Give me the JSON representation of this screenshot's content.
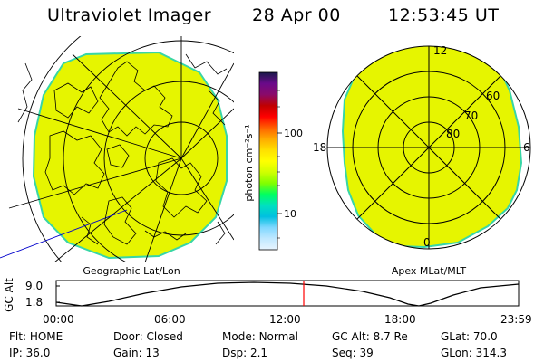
{
  "header": {
    "title": "Ultraviolet Imager",
    "date": "28 Apr 00",
    "time": "12:53:45 UT"
  },
  "left_panel": {
    "caption": "Geographic Lat/Lon"
  },
  "right_panel": {
    "caption": "Apex MLat/MLT",
    "mlt_labels": {
      "top": "12",
      "left": "18",
      "right": "6",
      "bottom": "0"
    },
    "lat_labels": [
      "60",
      "70",
      "80"
    ]
  },
  "colorbar": {
    "unit_label": "photon cm⁻²s⁻¹",
    "ticks": [
      "100",
      "10"
    ],
    "colors": [
      "#1a1a4a",
      "#6a0a8a",
      "#8a0a6a",
      "#c00000",
      "#ff0000",
      "#ff6000",
      "#ffaa00",
      "#ffe000",
      "#ffff00",
      "#d0ff00",
      "#80ff00",
      "#00ff60",
      "#00e0c0",
      "#00c0e0",
      "#80d8ff",
      "#c0e8ff",
      "#e8f4ff"
    ]
  },
  "altitude_plot": {
    "ylabel": "GC Alt",
    "y_ticks": [
      "9.0",
      "1.8"
    ],
    "x_ticks": [
      "00:00",
      "06:00",
      "12:00",
      "18:00",
      "23:59"
    ],
    "marker_time": "12:53:45"
  },
  "info_rows": [
    [
      {
        "label": "Flt:",
        "value": "HOME"
      },
      {
        "label": "Door:",
        "value": "Closed"
      },
      {
        "label": "Mode:",
        "value": "Normal"
      },
      {
        "label": "GC Alt:",
        "value": "8.7 Re"
      },
      {
        "label": "GLat:",
        "value": "70.0"
      }
    ],
    [
      {
        "label": "IP:",
        "value": "36.0"
      },
      {
        "label": "Gain:",
        "value": "13"
      },
      {
        "label": "Dsp:",
        "value": "2.1"
      },
      {
        "label": "Seq:",
        "value": "39"
      },
      {
        "label": "GLon:",
        "value": "314.3"
      }
    ]
  ],
  "colors": {
    "aurora_fill": "#e6f500",
    "aurora_edge": "#38d6a6",
    "marker": "#ff0000"
  }
}
